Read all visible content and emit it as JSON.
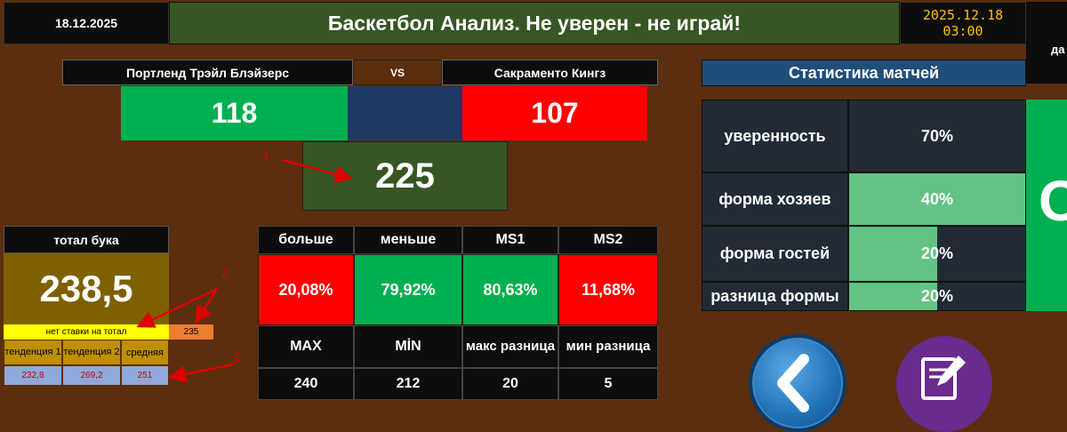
{
  "header": {
    "date": "18.12.2025",
    "title": "Баскетбол Анализ. Не уверен - не играй!",
    "datetime": "2025.12.18 03:00",
    "side_label": "да"
  },
  "match": {
    "home_team": "Портленд Трэйл Блэйзерс",
    "vs": "VS",
    "away_team": "Сакраменто Кингз",
    "home_score": "118",
    "away_score": "107",
    "total": "225"
  },
  "bookmaker": {
    "title": "тотал бука",
    "value": "238,5",
    "no_bet": "нет ставки на тотал",
    "no_bet_value": "235",
    "trend1": "тенденция 1",
    "trend2": "тенденция 2",
    "average": "средняя",
    "trend1_value": "232,8",
    "trend2_value": "269,2",
    "average_value": "251"
  },
  "odds": {
    "headers": [
      "больше",
      "меньше",
      "MS1",
      "MS2"
    ],
    "values": [
      "20,08%",
      "79,92%",
      "80,63%",
      "11,68%"
    ],
    "stat_headers": [
      "MAX",
      "MİN",
      "макс разница",
      "мин разница"
    ],
    "stat_values": [
      "240",
      "212",
      "20",
      "5"
    ]
  },
  "stats": {
    "title": "Статистика матчей",
    "rows": [
      {
        "label": "уверенность",
        "value": "70%",
        "fill": 0
      },
      {
        "label": "форма хозяев",
        "value": "40%",
        "fill": 1.0
      },
      {
        "label": "форма гостей",
        "value": "20%",
        "fill": 0.5
      },
      {
        "label": "разница формы",
        "value": "20%",
        "fill": 0.5
      }
    ],
    "side_letter": "O"
  },
  "annotations": [
    "1",
    "2",
    "3"
  ],
  "buttons": {
    "back_icon": "chevron-left-icon",
    "edit_icon": "edit-note-icon"
  },
  "colors": {
    "green": "#00b050",
    "red": "#ff0000",
    "navy": "#1f3864",
    "olive": "#375623",
    "gold": "#7f6000",
    "yellow": "#ffff00",
    "orange": "#ed7d31",
    "light_blue": "#8ea9db",
    "bar_green": "#63c384"
  }
}
